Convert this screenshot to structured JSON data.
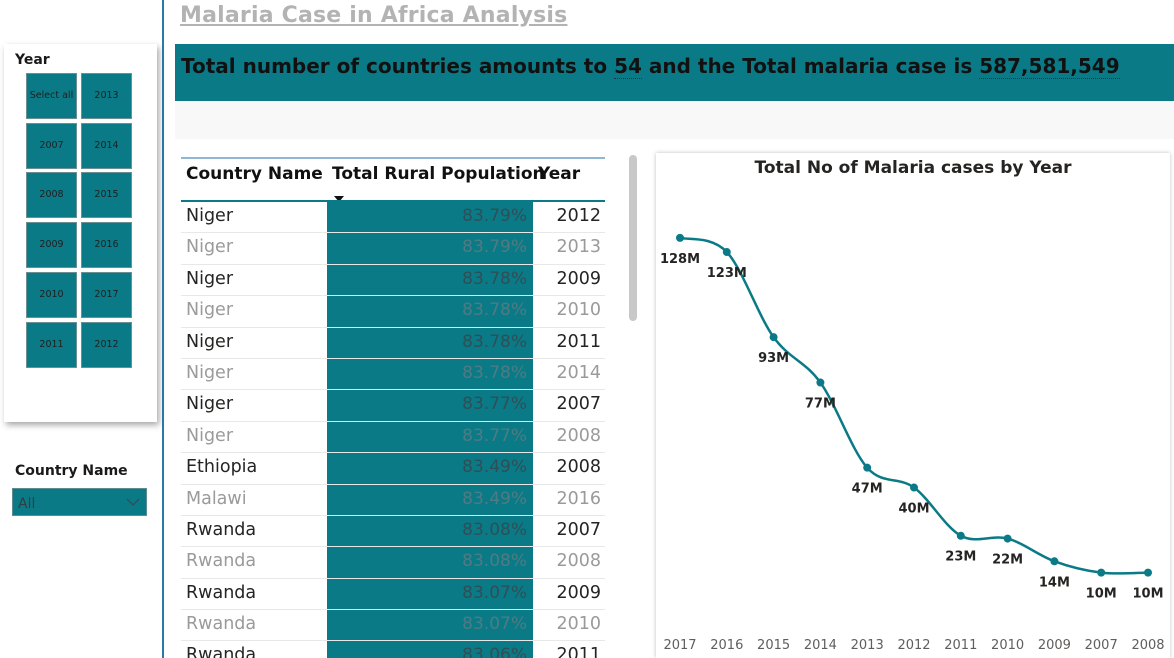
{
  "title": "Malaria Case in Africa Analysis",
  "kpi": {
    "prefix": "Total number of countries amounts to ",
    "countries": "54",
    "middle": " and the Total malaria case is ",
    "total_cases": "587,581,549"
  },
  "year_slicer": {
    "title": "Year",
    "tiles": [
      "Select all",
      "2013",
      "2007",
      "2014",
      "2008",
      "2015",
      "2009",
      "2016",
      "2010",
      "2017",
      "2011",
      "2012"
    ]
  },
  "country_slicer": {
    "title": "Country Name",
    "selected": "All"
  },
  "table": {
    "columns": [
      "Country Name",
      "Total Rural Population",
      "Year"
    ],
    "rows": [
      {
        "country": "Niger",
        "rural": "83.79%",
        "year": "2012"
      },
      {
        "country": "Niger",
        "rural": "83.79%",
        "year": "2013"
      },
      {
        "country": "Niger",
        "rural": "83.78%",
        "year": "2009"
      },
      {
        "country": "Niger",
        "rural": "83.78%",
        "year": "2010"
      },
      {
        "country": "Niger",
        "rural": "83.78%",
        "year": "2011"
      },
      {
        "country": "Niger",
        "rural": "83.78%",
        "year": "2014"
      },
      {
        "country": "Niger",
        "rural": "83.77%",
        "year": "2007"
      },
      {
        "country": "Niger",
        "rural": "83.77%",
        "year": "2008"
      },
      {
        "country": "Ethiopia",
        "rural": "83.49%",
        "year": "2008"
      },
      {
        "country": "Malawi",
        "rural": "83.49%",
        "year": "2016"
      },
      {
        "country": "Rwanda",
        "rural": "83.08%",
        "year": "2007"
      },
      {
        "country": "Rwanda",
        "rural": "83.08%",
        "year": "2008"
      },
      {
        "country": "Rwanda",
        "rural": "83.07%",
        "year": "2009"
      },
      {
        "country": "Rwanda",
        "rural": "83.07%",
        "year": "2010"
      },
      {
        "country": "Rwanda",
        "rural": "83.06%",
        "year": "2011"
      }
    ]
  },
  "colors": {
    "accent": "#0b7a87",
    "divider": "#2b79a3"
  },
  "chart_data": {
    "type": "line",
    "title": "Total No of Malaria cases by Year",
    "categories": [
      "2017",
      "2016",
      "2015",
      "2014",
      "2013",
      "2012",
      "2011",
      "2010",
      "2009",
      "2007",
      "2008"
    ],
    "values": [
      128,
      123,
      93,
      77,
      47,
      40,
      23,
      22,
      14,
      10,
      10
    ],
    "data_labels": [
      "128M",
      "123M",
      "93M",
      "77M",
      "47M",
      "40M",
      "23M",
      "22M",
      "14M",
      "10M",
      "10M"
    ],
    "unit": "M",
    "ylim": [
      0,
      135
    ],
    "grid": false,
    "legend": "none"
  }
}
